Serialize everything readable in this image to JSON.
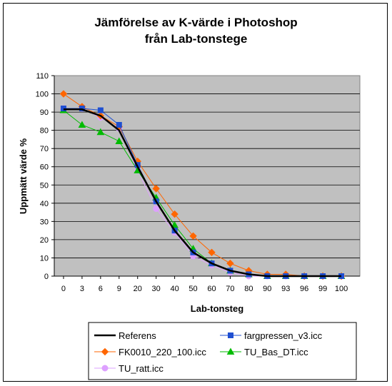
{
  "chart_data": {
    "type": "line",
    "title": [
      "Jämförelse av K-värde i Photoshop",
      "från Lab-tonstege"
    ],
    "xlabel": "Lab-tonsteg",
    "ylabel": "Uppmätt värde %",
    "categories": [
      "0",
      "3",
      "6",
      "9",
      "20",
      "30",
      "40",
      "50",
      "60",
      "70",
      "80",
      "90",
      "93",
      "96",
      "99",
      "100"
    ],
    "ylim": [
      0,
      110
    ],
    "yticks": [
      0,
      10,
      20,
      30,
      40,
      50,
      60,
      70,
      80,
      90,
      100,
      110
    ],
    "grid": true,
    "plot_background": "#c0c0c0",
    "legend_position": "bottom",
    "series": [
      {
        "name": "Referens",
        "color": "#000000",
        "marker": "none",
        "width": 2.5,
        "values": [
          91.5,
          91.5,
          88,
          80,
          60,
          41,
          25,
          13,
          7,
          3,
          1,
          0,
          0,
          0,
          0,
          0
        ]
      },
      {
        "name": "fargpressen_v3.icc",
        "color": "#1f4fd1",
        "marker": "square",
        "width": 1,
        "values": [
          92,
          92,
          91,
          83,
          61,
          41,
          25,
          13,
          7,
          3,
          1,
          0,
          0,
          0,
          0,
          0
        ]
      },
      {
        "name": "FK0010_220_100.icc",
        "color": "#ff6600",
        "marker": "diamond",
        "width": 1,
        "values": [
          100,
          93,
          88,
          82,
          63,
          48,
          34,
          22,
          13,
          7,
          3,
          1,
          1,
          0,
          0,
          0
        ]
      },
      {
        "name": "TU_Bas_DT.icc",
        "color": "#00bb00",
        "marker": "triangle",
        "width": 1,
        "values": [
          91,
          83,
          79,
          74,
          58,
          43,
          28,
          15,
          7,
          3,
          1,
          0,
          0,
          0,
          0,
          0
        ]
      },
      {
        "name": "TU_ratt.icc",
        "color": "#dda0ff",
        "marker": "circle",
        "width": 1,
        "values": [
          92,
          92,
          87,
          81,
          58,
          37,
          24,
          11,
          6,
          2,
          0,
          0,
          0,
          0,
          0,
          0
        ]
      }
    ]
  }
}
